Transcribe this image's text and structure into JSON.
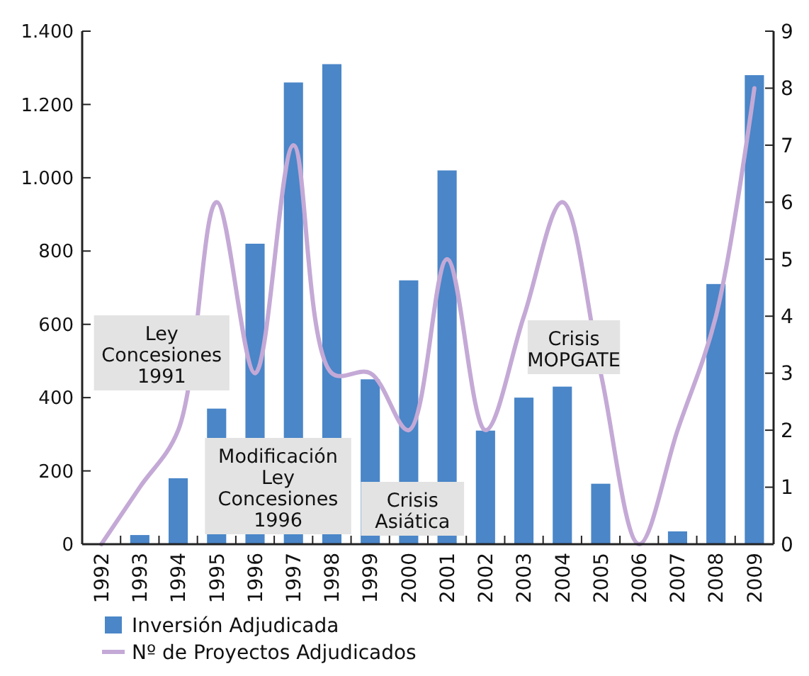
{
  "chart_data": {
    "type": "bar",
    "categories": [
      "1992",
      "1993",
      "1994",
      "1995",
      "1996",
      "1997",
      "1998",
      "1999",
      "2000",
      "2001",
      "2002",
      "2003",
      "2004",
      "2005",
      "2006",
      "2007",
      "2008",
      "2009"
    ],
    "series": [
      {
        "name": "Inversión Adjudicada",
        "color": "#4a86c8",
        "values": [
          0,
          25,
          180,
          370,
          820,
          1260,
          1310,
          450,
          720,
          1020,
          310,
          400,
          430,
          165,
          0,
          35,
          710,
          1280
        ]
      },
      {
        "name": "Nº de Proyectos Adjudicados",
        "type": "line",
        "axis": "y2",
        "color": "#c4a9d6",
        "values": [
          0,
          1,
          2,
          6,
          3,
          7,
          3,
          3,
          2,
          5,
          2,
          4,
          6,
          3,
          0,
          2,
          4,
          8
        ]
      }
    ],
    "ylim": [
      0,
      1400
    ],
    "yticks": [
      {
        "value": 0,
        "label": "0"
      },
      {
        "value": 200,
        "label": "200"
      },
      {
        "value": 400,
        "label": "400"
      },
      {
        "value": 600,
        "label": "600"
      },
      {
        "value": 800,
        "label": "800"
      },
      {
        "value": 1000,
        "label": "1.000"
      },
      {
        "value": 1200,
        "label": "1.200"
      },
      {
        "value": 1400,
        "label": "1.400"
      }
    ],
    "y2lim": [
      0,
      9
    ],
    "y2ticks": [
      0,
      1,
      2,
      3,
      4,
      5,
      6,
      7,
      8,
      9
    ],
    "annotations": [
      "Ley\nConcesiones\n1991",
      "Modificación\nLey\nConcesiones\n1996",
      "Crisis\nAsiática",
      "Crisis\nMOPGATE"
    ],
    "legend": "bottom",
    "grid": false
  }
}
